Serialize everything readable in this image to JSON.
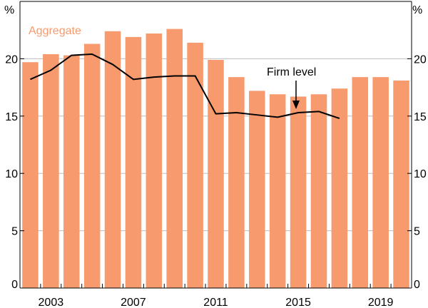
{
  "chart_data": {
    "type": "bar",
    "title": "",
    "y_unit_left": "%",
    "y_unit_right": "%",
    "ylim": [
      0,
      25
    ],
    "y_ticks": [
      0,
      5,
      10,
      15,
      20
    ],
    "grid": true,
    "years": [
      2002,
      2003,
      2004,
      2005,
      2006,
      2007,
      2008,
      2009,
      2010,
      2011,
      2012,
      2013,
      2014,
      2015,
      2016,
      2017,
      2018,
      2019,
      2020
    ],
    "x_tick_labels": [
      {
        "year": 2003,
        "label": "2003"
      },
      {
        "year": 2007,
        "label": "2007"
      },
      {
        "year": 2011,
        "label": "2011"
      },
      {
        "year": 2015,
        "label": "2015"
      },
      {
        "year": 2019,
        "label": "2019"
      }
    ],
    "series": [
      {
        "name": "Aggregate",
        "type": "bar",
        "color": "#F79A6E",
        "values": [
          19.7,
          20.4,
          20.3,
          21.3,
          22.4,
          21.9,
          22.2,
          22.6,
          21.4,
          19.9,
          18.4,
          17.2,
          16.9,
          16.7,
          16.9,
          17.4,
          18.4,
          18.4,
          18.1
        ]
      },
      {
        "name": "Firm level",
        "type": "line",
        "color": "#000000",
        "values": [
          18.2,
          19.0,
          20.3,
          20.4,
          19.5,
          18.2,
          18.4,
          18.5,
          18.5,
          15.2,
          15.3,
          15.1,
          14.9,
          15.3,
          15.4,
          14.8
        ]
      }
    ],
    "annotations": {
      "aggregate_label": "Aggregate",
      "firm_label": "Firm level"
    }
  }
}
